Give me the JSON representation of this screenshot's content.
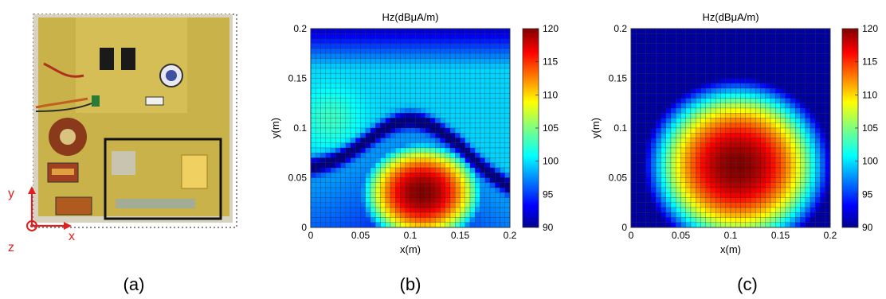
{
  "panels": [
    {
      "label": "(a)"
    },
    {
      "label": "(b)"
    },
    {
      "label": "(c)"
    }
  ],
  "photo": {
    "axis_labels": {
      "x": "x",
      "y": "y",
      "z": "z"
    },
    "description_colors": {
      "board": "#cdb64a",
      "annotation": "#e02020",
      "frame": "#111111"
    }
  },
  "chart_data": [
    {
      "type": "heatmap",
      "title": "Hz(dBμA/m)",
      "xlabel": "x(m)",
      "ylabel": "y(m)",
      "xlim": [
        0,
        0.2
      ],
      "ylim": [
        0,
        0.2
      ],
      "xticks": [
        "0",
        "0.05",
        "0.1",
        "0.15",
        "0.2"
      ],
      "yticks": [
        "0",
        "0.05",
        "0.1",
        "0.15",
        "0.2"
      ],
      "clim": [
        90,
        120
      ],
      "colorbar_ticks": [
        "90",
        "95",
        "100",
        "105",
        "110",
        "115",
        "120"
      ],
      "colormap": "jet",
      "grid": true,
      "grid_size": 40,
      "field": "measured",
      "peak": {
        "x": 0.11,
        "y": 0.035,
        "value": 120
      }
    },
    {
      "type": "heatmap",
      "title": "Hz(dBμA/m)",
      "xlabel": "x(m)",
      "ylabel": "y(m)",
      "xlim": [
        0,
        0.2
      ],
      "ylim": [
        0,
        0.2
      ],
      "xticks": [
        "0",
        "0.05",
        "0.1",
        "0.15",
        "0.2"
      ],
      "yticks": [
        "0",
        "0.05",
        "0.1",
        "0.15",
        "0.2"
      ],
      "clim": [
        90,
        120
      ],
      "colorbar_ticks": [
        "90",
        "95",
        "100",
        "105",
        "110",
        "115",
        "120"
      ],
      "colormap": "jet",
      "grid": true,
      "grid_size": 40,
      "field": "simulated",
      "peak": {
        "x": 0.11,
        "y": 0.06,
        "value": 120
      }
    }
  ]
}
